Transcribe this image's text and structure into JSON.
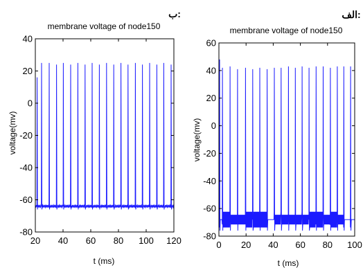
{
  "chart_data": [
    {
      "panel_label": "ب:",
      "type": "line",
      "title": "membrane voltage of node150",
      "xlabel": "t (ms)",
      "ylabel": "voltage(mv)",
      "xlim": [
        20,
        120
      ],
      "ylim": [
        -80,
        40
      ],
      "xticks": [
        20,
        40,
        60,
        80,
        100,
        120
      ],
      "yticks": [
        40,
        20,
        0,
        -20,
        -40,
        -60,
        -80
      ],
      "grid": false,
      "line_color": "#1a1aff",
      "baseline_mv": -64,
      "baseline_noise_mv": 1.5,
      "spike_times_ms": [
        21.3,
        24.5,
        30.0,
        35.3,
        40.2,
        45.5,
        50.7,
        55.9,
        61.0,
        66.2,
        71.4,
        76.6,
        81.8,
        86.9,
        92.2,
        97.3,
        102.5,
        107.7,
        112.7,
        118.0
      ],
      "spike_peaks_mv": [
        16,
        25,
        25,
        24,
        25,
        24,
        25,
        24,
        25,
        24,
        25,
        24,
        25,
        24,
        25,
        24,
        25,
        24,
        25,
        24
      ],
      "trough_mv": -66
    },
    {
      "panel_label": "الف:",
      "type": "line",
      "title": "membrane voltage of node150",
      "xlabel": "t (ms)",
      "ylabel": "voltage(mv)",
      "xlim": [
        0,
        100
      ],
      "ylim": [
        -80,
        60
      ],
      "xticks": [
        0,
        20,
        40,
        60,
        80,
        100
      ],
      "yticks": [
        60,
        40,
        20,
        0,
        -20,
        -40,
        -60,
        -80
      ],
      "grid": false,
      "line_color": "#1a1aff",
      "baseline_mv": -68,
      "oscillation_amplitude_mv": 6,
      "oscillation_period_ms": 0.5,
      "spike_times_ms": [
        0.5,
        2.6,
        8.2,
        13.7,
        19.6,
        24.9,
        30.1,
        35.5,
        40.8,
        45.8,
        51.2,
        56.3,
        61.3,
        66.4,
        71.6,
        76.8,
        82.1,
        87.2,
        92.0,
        97.0
      ],
      "spike_peaks_mv": [
        48,
        42,
        43,
        41,
        42,
        41,
        42,
        41,
        42,
        42,
        43,
        42,
        43,
        42,
        43,
        43,
        42,
        43,
        43,
        43
      ],
      "trough_mv": -76
    }
  ]
}
